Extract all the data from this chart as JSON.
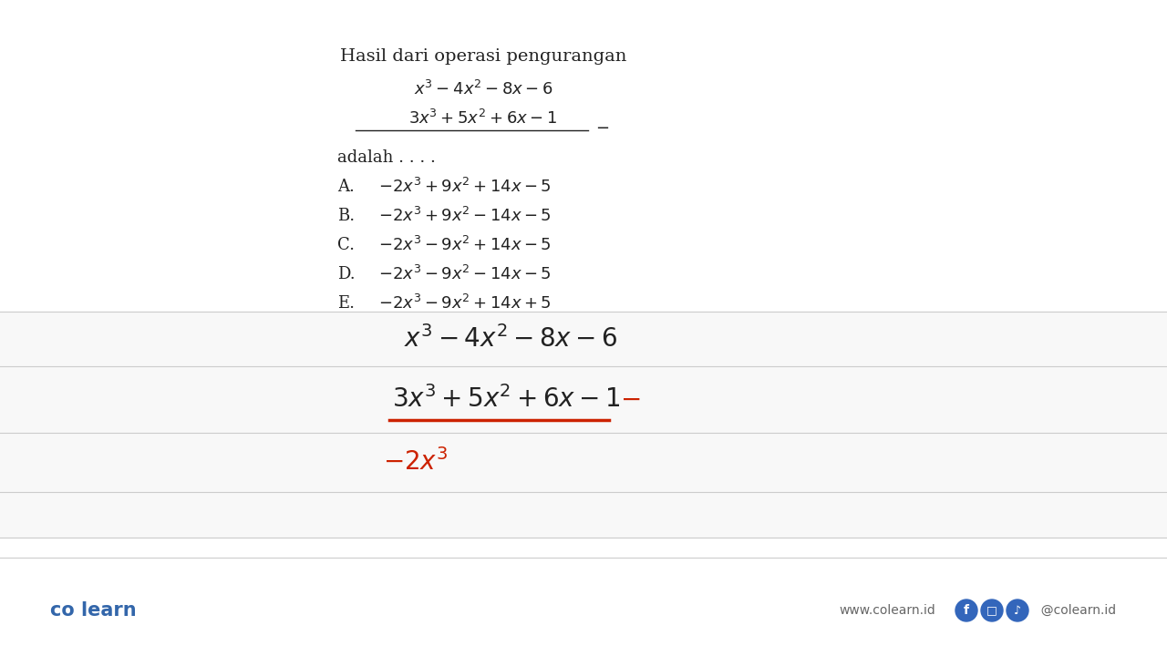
{
  "bg_color": "#ffffff",
  "bg_lower": "#f0f0f0",
  "title_text": "Hasil dari operasi pengurangan",
  "line1_typed": "$x^3 - 4x^2 - 8x - 6$",
  "line2_typed": "$3x^3 + 5x^2 + 6x - 1$",
  "adalah": "adalah . . . .",
  "options": [
    [
      "A.",
      "$-2x^3 + 9x^2 + 14x - 5$"
    ],
    [
      "B.",
      "$-2x^3 + 9x^2 - 14x - 5$"
    ],
    [
      "C.",
      "$-2x^3 - 9x^2 + 14x - 5$"
    ],
    [
      "D.",
      "$-2x^3 - 9x^2 - 14x - 5$"
    ],
    [
      "E.",
      "$-2x^3 - 9x^2 + 14x + 5$"
    ]
  ],
  "hw_line1": "$x^3 -4x^2 -8x -6$",
  "hw_line2": "$3x^3+5x^2+6x-1$",
  "hw_result": "$-2x^3$",
  "text_color_dark": "#222222",
  "text_color_red": "#cc2200",
  "text_color_blue": "#3366aa",
  "text_color_gray": "#666666",
  "sep_color": "#cccccc",
  "footer_left": "co learn",
  "footer_center": "www.colearn.id",
  "footer_right": "@colearn.id",
  "font_size_title": 14,
  "font_size_body": 13,
  "font_size_hw": 20,
  "font_size_result": 20,
  "font_size_footer": 12
}
